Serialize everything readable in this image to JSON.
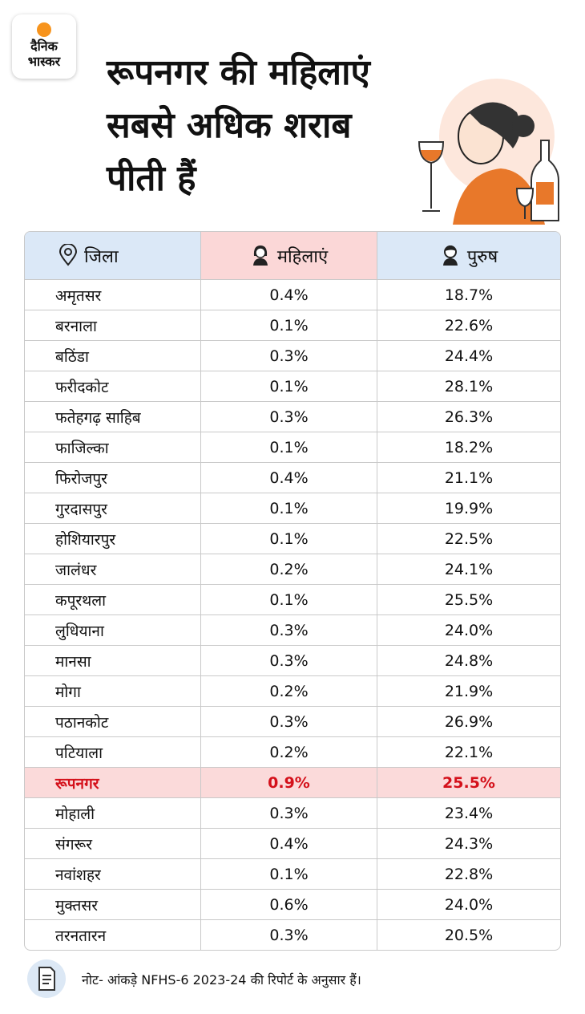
{
  "logo": {
    "line1": "दैनिक",
    "line2": "भास्कर"
  },
  "header": {
    "title_lines": [
      "रूपनगर की महिलाएं",
      "सबसे अधिक शराब",
      "पीती हैं"
    ]
  },
  "table": {
    "columns": [
      "जिला",
      "महिलाएं",
      "पुरुष"
    ],
    "rows": [
      [
        "अमृतसर",
        "0.4%",
        "18.7%"
      ],
      [
        "बरनाला",
        "0.1%",
        "22.6%"
      ],
      [
        "बठिंडा",
        "0.3%",
        "24.4%"
      ],
      [
        "फरीदकोट",
        "0.1%",
        "28.1%"
      ],
      [
        "फतेहगढ़ साहिब",
        "0.3%",
        "26.3%"
      ],
      [
        "फाजिल्का",
        "0.1%",
        "18.2%"
      ],
      [
        "फिरोजपुर",
        "0.4%",
        "21.1%"
      ],
      [
        "गुरदासपुर",
        "0.1%",
        "19.9%"
      ],
      [
        "होशियारपुर",
        "0.1%",
        "22.5%"
      ],
      [
        "जालंधर",
        "0.2%",
        "24.1%"
      ],
      [
        "कपूरथला",
        "0.1%",
        "25.5%"
      ],
      [
        "लुधियाना",
        "0.3%",
        "24.0%"
      ],
      [
        "मानसा",
        "0.3%",
        "24.8%"
      ],
      [
        "मोगा",
        "0.2%",
        "21.9%"
      ],
      [
        "पठानकोट",
        "0.3%",
        "26.9%"
      ],
      [
        "पटियाला",
        "0.2%",
        "22.1%"
      ],
      [
        "रूपनगर",
        "0.9%",
        "25.5%"
      ],
      [
        "मोहाली",
        "0.3%",
        "23.4%"
      ],
      [
        "संगरूर",
        "0.4%",
        "24.3%"
      ],
      [
        "नवांशहर",
        "0.1%",
        "22.8%"
      ],
      [
        "मुक्तसर",
        "0.6%",
        "24.0%"
      ],
      [
        "तरनतारन",
        "0.3%",
        "20.5%"
      ]
    ]
  },
  "footer": {
    "note": "नोट- आंकड़े  NFHS-6 2023-24 की रिपोर्ट के अनुसार हैं।"
  }
}
